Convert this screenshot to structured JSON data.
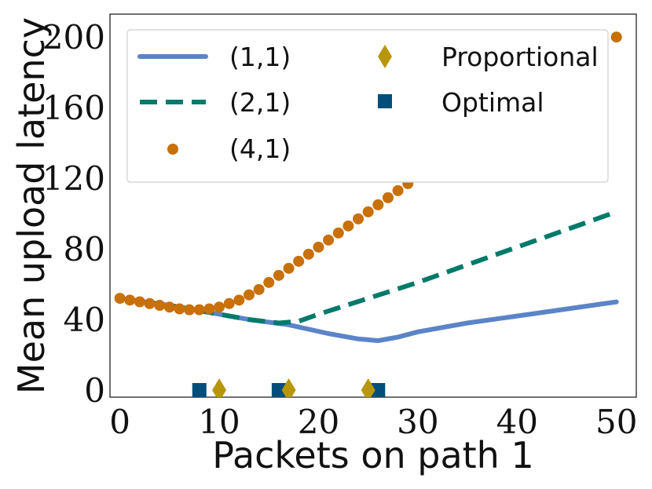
{
  "chart_data": {
    "type": "line",
    "title": "",
    "xlabel": "Packets on path 1",
    "ylabel": "Mean upload latency",
    "xlim": [
      -1,
      52
    ],
    "ylim": [
      -4,
      213
    ],
    "xticks": [
      0,
      10,
      20,
      30,
      40,
      50
    ],
    "yticks": [
      0,
      40,
      80,
      120,
      160,
      200
    ],
    "xtick_labels": [
      "0",
      "10",
      "20",
      "30",
      "40",
      "50"
    ],
    "ytick_labels": [
      "0",
      "40",
      "80",
      "120",
      "160",
      "200"
    ],
    "grid": false,
    "legend_position": "top",
    "series": [
      {
        "name": "(1,1)",
        "style": "solid",
        "color": "#5b84c8",
        "x": [
          0,
          5,
          9,
          13,
          17,
          21,
          24,
          26,
          28,
          30,
          35,
          40,
          45,
          50
        ],
        "y": [
          52,
          48,
          44,
          40,
          37,
          32,
          29,
          28,
          30,
          33,
          38,
          42,
          46,
          50
        ]
      },
      {
        "name": "(2,1)",
        "style": "dashed",
        "color": "#007a6a",
        "x": [
          0,
          5,
          9,
          13,
          16,
          18,
          20,
          25,
          30,
          35,
          40,
          45,
          50
        ],
        "y": [
          52,
          48,
          44,
          40,
          38,
          39,
          43,
          52,
          61,
          71,
          81,
          91,
          101
        ]
      },
      {
        "name": "(4,1)",
        "style": "markers",
        "color": "#c8700a",
        "x": [
          0,
          1,
          2,
          3,
          4,
          5,
          6,
          7,
          8,
          9,
          10,
          11,
          12,
          13,
          14,
          15,
          16,
          17,
          18,
          19,
          20,
          21,
          22,
          23,
          24,
          25,
          26,
          27,
          28,
          29,
          50
        ],
        "y": [
          52,
          51,
          50,
          49,
          48,
          47,
          46,
          45.5,
          45.5,
          46,
          47,
          49,
          51,
          54,
          57,
          61,
          65,
          69,
          73,
          77,
          81,
          85,
          89,
          93,
          97,
          101,
          105,
          109,
          113,
          117,
          200
        ]
      },
      {
        "name": "Proportional",
        "style": "diamond",
        "color": "#b8960a",
        "x": [
          10,
          17,
          25
        ],
        "y": [
          0,
          0,
          0
        ]
      },
      {
        "name": "Optimal",
        "style": "square",
        "color": "#004f7a",
        "x": [
          8,
          16,
          26
        ],
        "y": [
          0,
          0,
          0
        ]
      }
    ]
  }
}
